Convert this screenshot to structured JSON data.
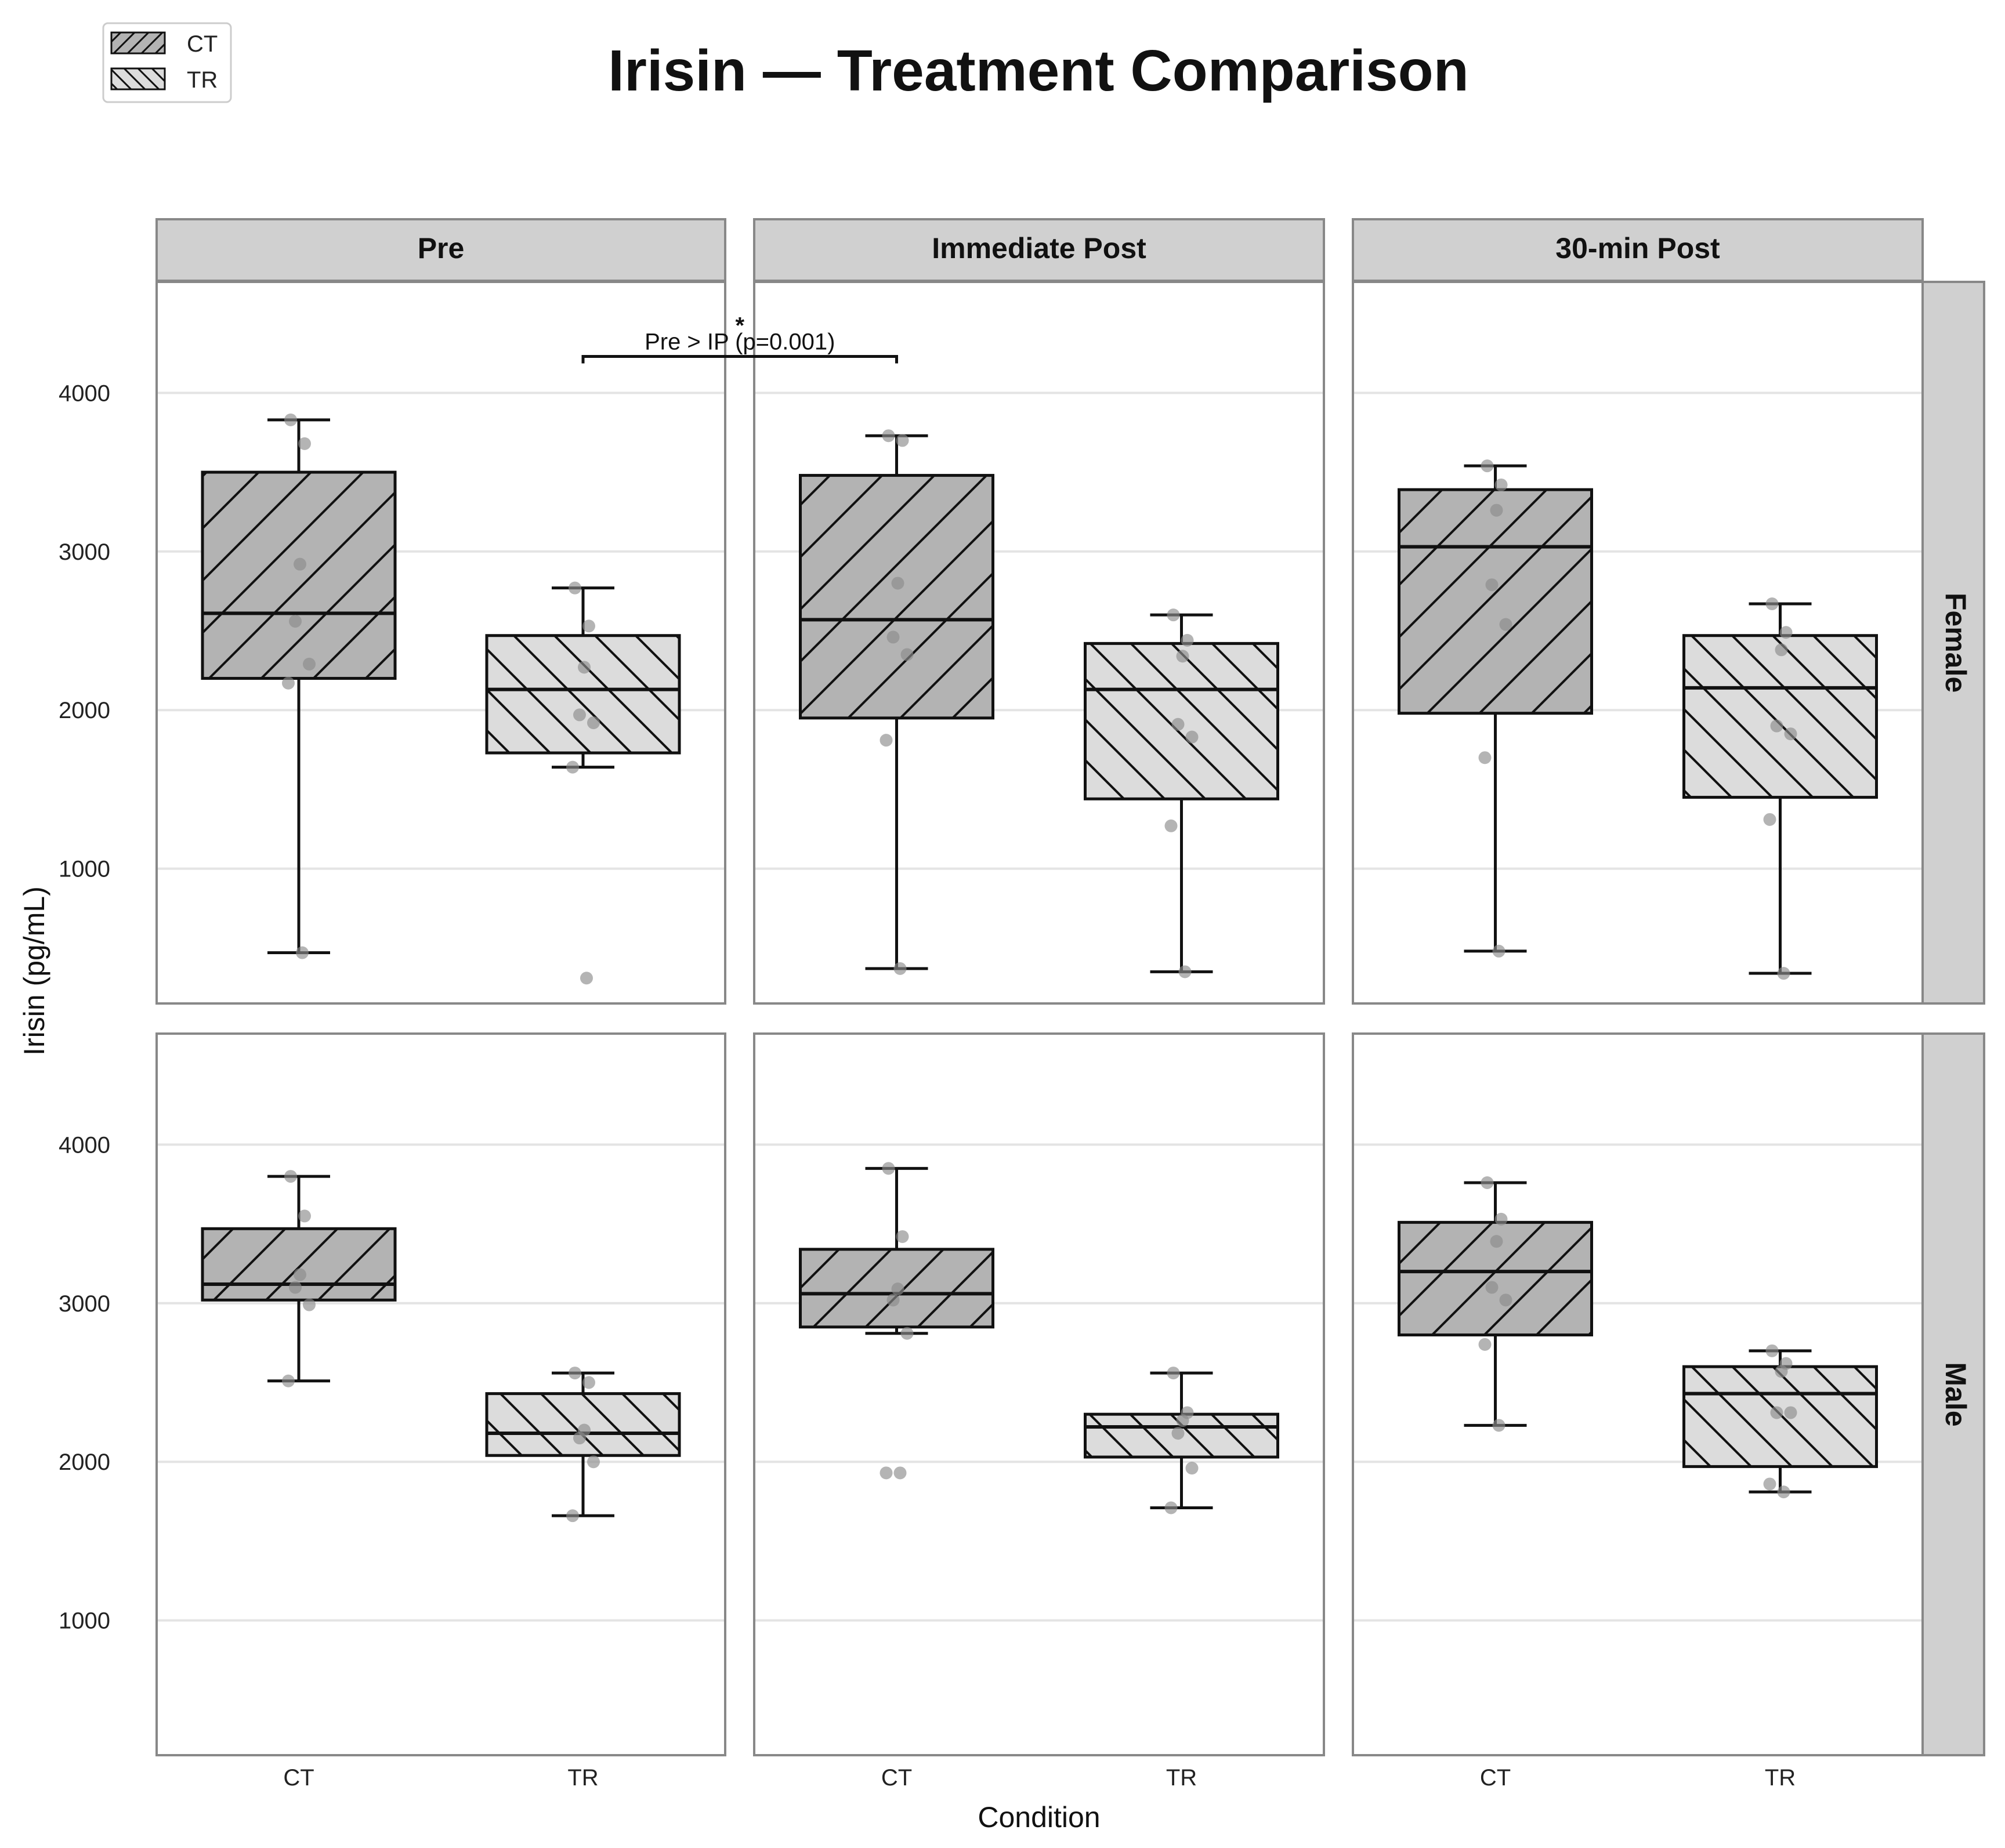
{
  "chart_data": {
    "type": "boxplot",
    "title": "Irisin — Treatment Comparison",
    "xlabel": "Condition",
    "ylabel": "Irisin (pg/mL)",
    "ylim": [
      150,
      4700
    ],
    "yticks": [
      1000,
      2000,
      3000,
      4000
    ],
    "ytick_labels": [
      "1000",
      "2000",
      "3000",
      "4000"
    ],
    "categories": [
      "CT",
      "TR"
    ],
    "columns": [
      "Pre",
      "Immediate Post",
      "30-min Post"
    ],
    "rows": [
      "Female",
      "Male"
    ],
    "grid": true,
    "legend": {
      "position": "top-left",
      "entries": [
        {
          "label": "CT",
          "fill": "#b3b3b3",
          "hatch": "forward"
        },
        {
          "label": "TR",
          "fill": "#dcdcdc",
          "hatch": "back"
        }
      ]
    },
    "annotation": {
      "text": "Pre > IP (p=0.001)",
      "star": "*",
      "row": "Female",
      "from": {
        "column": "Pre",
        "category": "TR"
      },
      "to": {
        "column": "Immediate Post",
        "category": "CT"
      },
      "y": 4230
    },
    "panels": [
      {
        "row": "Female",
        "column": "Pre",
        "boxes": [
          {
            "category": "CT",
            "whisker_low": 470,
            "q1": 2200,
            "median": 2610,
            "q3": 3500,
            "whisker_high": 3830,
            "points": [
              3830,
              3680,
              2920,
              2560,
              2290,
              2170,
              470
            ]
          },
          {
            "category": "TR",
            "whisker_low": 1640,
            "q1": 1730,
            "median": 2130,
            "q3": 2470,
            "whisker_high": 2770,
            "points": [
              2770,
              2530,
              2270,
              1970,
              1920,
              1640,
              310
            ]
          }
        ]
      },
      {
        "row": "Female",
        "column": "Immediate Post",
        "boxes": [
          {
            "category": "CT",
            "whisker_low": 370,
            "q1": 1950,
            "median": 2570,
            "q3": 3480,
            "whisker_high": 3730,
            "points": [
              3730,
              3700,
              2800,
              2460,
              2350,
              1810,
              370
            ]
          },
          {
            "category": "TR",
            "whisker_low": 350,
            "q1": 1440,
            "median": 2130,
            "q3": 2420,
            "whisker_high": 2600,
            "points": [
              2600,
              2440,
              2340,
              1910,
              1830,
              1270,
              350
            ]
          }
        ]
      },
      {
        "row": "Female",
        "column": "30-min Post",
        "boxes": [
          {
            "category": "CT",
            "whisker_low": 480,
            "q1": 1980,
            "median": 3030,
            "q3": 3390,
            "whisker_high": 3540,
            "points": [
              3540,
              3420,
              3260,
              2790,
              2540,
              1700,
              480
            ]
          },
          {
            "category": "TR",
            "whisker_low": 340,
            "q1": 1450,
            "median": 2140,
            "q3": 2470,
            "whisker_high": 2670,
            "points": [
              2670,
              2490,
              2380,
              1900,
              1850,
              1310,
              340
            ]
          }
        ]
      },
      {
        "row": "Male",
        "column": "Pre",
        "boxes": [
          {
            "category": "CT",
            "whisker_low": 2510,
            "q1": 3020,
            "median": 3120,
            "q3": 3470,
            "whisker_high": 3800,
            "points": [
              3800,
              3550,
              3180,
              3100,
              2990,
              2510
            ]
          },
          {
            "category": "TR",
            "whisker_low": 1660,
            "q1": 2040,
            "median": 2180,
            "q3": 2430,
            "whisker_high": 2560,
            "points": [
              2560,
              2500,
              2200,
              2150,
              2000,
              1660
            ]
          }
        ]
      },
      {
        "row": "Male",
        "column": "Immediate Post",
        "boxes": [
          {
            "category": "CT",
            "whisker_low": 2810,
            "q1": 2850,
            "median": 3060,
            "q3": 3340,
            "whisker_high": 3850,
            "points": [
              3850,
              3420,
              3090,
              3020,
              2810,
              1930,
              1930
            ]
          },
          {
            "category": "TR",
            "whisker_low": 1710,
            "q1": 2030,
            "median": 2220,
            "q3": 2300,
            "whisker_high": 2560,
            "points": [
              2560,
              2310,
              2260,
              2180,
              1960,
              1710
            ]
          }
        ]
      },
      {
        "row": "Male",
        "column": "30-min Post",
        "boxes": [
          {
            "category": "CT",
            "whisker_low": 2230,
            "q1": 2800,
            "median": 3200,
            "q3": 3510,
            "whisker_high": 3760,
            "points": [
              3760,
              3530,
              3390,
              3100,
              3020,
              2740,
              2230
            ]
          },
          {
            "category": "TR",
            "whisker_low": 1810,
            "q1": 1970,
            "median": 2430,
            "q3": 2600,
            "whisker_high": 2700,
            "points": [
              2700,
              2620,
              2570,
              2310,
              2310,
              1860,
              1810
            ]
          }
        ]
      }
    ]
  }
}
